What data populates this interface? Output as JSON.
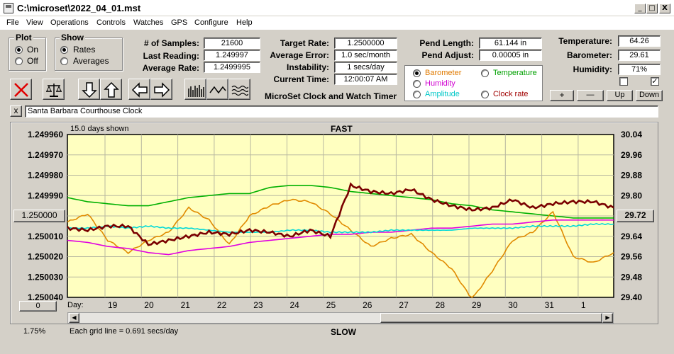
{
  "window": {
    "title": "C:\\microset\\2022_04_01.mst",
    "min": "_",
    "max": "□",
    "close": "X"
  },
  "menu": [
    "File",
    "View",
    "Operations",
    "Controls",
    "Watches",
    "GPS",
    "Configure",
    "Help"
  ],
  "plot_group": {
    "label": "Plot",
    "options": [
      "On",
      "Off"
    ],
    "selected": "On"
  },
  "show_group": {
    "label": "Show",
    "options": [
      "Rates",
      "Averages"
    ],
    "selected": "Rates"
  },
  "stats": {
    "samples_label": "# of Samples:",
    "samples": "21600",
    "last_reading_label": "Last Reading:",
    "last_reading": "1.249997",
    "average_rate_label": "Average Rate:",
    "average_rate": "1.2499995",
    "target_rate_label": "Target Rate:",
    "target_rate": "1.2500000",
    "average_error_label": "Average Error:",
    "average_error": "1.0 sec/month",
    "instability_label": "Instability:",
    "instability": "1 secs/day",
    "current_time_label": "Current Time:",
    "current_time": "12:00:07 AM",
    "pend_length_label": "Pend Length:",
    "pend_length": "61.144 in",
    "pend_adjust_label": "Pend Adjust:",
    "pend_adjust": "0.00005 in",
    "temperature_label": "Temperature:",
    "temperature": "64.26",
    "barometer_label": "Barometer:",
    "barometer": "29.61",
    "humidity_label": "Humidity:",
    "humidity": "71%"
  },
  "app_caption": "MicroSet Clock and Watch Timer",
  "series_select": {
    "options": [
      {
        "label": "Barometer",
        "color": "#e07a00",
        "selected": true
      },
      {
        "label": "Temperature",
        "color": "#00a000",
        "selected": false
      },
      {
        "label": "Humidity",
        "color": "#d000d0",
        "selected": false
      },
      {
        "label": "Clock rate",
        "color": "#a00000",
        "selected": false
      },
      {
        "label": "Amplitude",
        "color": "#00c8c8",
        "selected": false
      }
    ]
  },
  "side_buttons": {
    "plus": "+",
    "minus": "—",
    "up": "Up",
    "down": "Down"
  },
  "checkboxes": [
    {
      "checked": false
    },
    {
      "checked": true
    }
  ],
  "toolbar_icons": [
    "clear-icon",
    "scale-icon",
    "down-arrow-icon",
    "up-arrow-icon",
    "left-arrow-icon",
    "right-arrow-icon",
    "bars-icon",
    "wave-icon",
    "multiwave-icon"
  ],
  "clock_name": {
    "close": "x",
    "value": "Santa Barbara Courthouse Clock"
  },
  "chart_header": {
    "days_shown": "15.0 days shown",
    "fast": "FAST",
    "slow": "SLOW",
    "grid_note": "Each grid line = 0.691 secs/day",
    "zoom": "1.75%",
    "day_label": "Day:"
  },
  "left_value_button": "1.250000",
  "right_value_button": "29.72",
  "bottom_left_button": "0",
  "chart_data": {
    "type": "line",
    "x_labels": [
      "19",
      "20",
      "21",
      "22",
      "23",
      "24",
      "25",
      "26",
      "27",
      "28",
      "29",
      "30",
      "31",
      "1"
    ],
    "y_left_ticks": [
      "1.249960",
      "1.249970",
      "1.249980",
      "1.249990",
      "1.250000",
      "1.250010",
      "1.250020",
      "1.250030",
      "1.250040"
    ],
    "y_right_ticks": [
      "30.04",
      "29.96",
      "29.88",
      "29.80",
      "29.72",
      "29.64",
      "29.56",
      "29.48",
      "29.40"
    ],
    "grid": true,
    "series": [
      {
        "color": "#00b000",
        "values": [
          1.249991,
          1.249993,
          1.249994,
          1.249995,
          1.249995,
          1.249993,
          1.249991,
          1.24999,
          1.249989,
          1.249989,
          1.249986,
          1.249985,
          1.249985,
          1.249986,
          1.249988,
          1.249989,
          1.24999,
          1.249991,
          1.249992,
          1.249994,
          1.249995,
          1.249997,
          1.249998,
          1.249999,
          1.25,
          1.250001,
          1.250001,
          1.250001
        ]
      },
      {
        "color": "#e08a00",
        "values": [
          1.250003,
          1.249999,
          1.250012,
          1.250018,
          1.250012,
          1.250008,
          1.249996,
          1.250002,
          1.250014,
          1.25,
          1.249995,
          1.249992,
          1.249993,
          1.249999,
          1.250007,
          1.250015,
          1.250011,
          1.250009,
          1.250018,
          1.250026,
          1.250041,
          1.250027,
          1.250012,
          1.250008,
          1.249998,
          1.25002,
          1.250023,
          1.250018
        ]
      },
      {
        "color": "#e000e0",
        "values": [
          1.250012,
          1.250013,
          1.250015,
          1.250016,
          1.250018,
          1.250019,
          1.250017,
          1.250016,
          1.250015,
          1.250013,
          1.250012,
          1.250011,
          1.25001,
          1.250009,
          1.250009,
          1.250008,
          1.250008,
          1.250007,
          1.250006,
          1.250006,
          1.250005,
          1.250004,
          1.250004,
          1.250003,
          1.250002,
          1.250002,
          1.250002,
          1.250002
        ]
      },
      {
        "color": "#00d8d8",
        "values": [
          1.250006,
          1.250006,
          1.250005,
          1.250006,
          1.250005,
          1.250006,
          1.250006,
          1.250007,
          1.250008,
          1.250008,
          1.250008,
          1.250007,
          1.250007,
          1.250008,
          1.250008,
          1.250008,
          1.250007,
          1.250007,
          1.250007,
          1.250007,
          1.250006,
          1.250006,
          1.250006,
          1.250005,
          1.250005,
          1.250005,
          1.250004,
          1.250004
        ]
      },
      {
        "color": "#7a0000",
        "values": [
          1.250006,
          1.250007,
          1.250005,
          1.250005,
          1.250014,
          1.250012,
          1.25001,
          1.250008,
          1.250009,
          1.250007,
          1.250008,
          1.25001,
          1.250007,
          1.25001,
          1.249985,
          1.249988,
          1.249989,
          1.249987,
          1.249992,
          1.249995,
          1.249997,
          1.249996,
          1.249992,
          1.249996,
          1.249994,
          1.249993,
          1.249993,
          1.249996
        ]
      }
    ]
  }
}
